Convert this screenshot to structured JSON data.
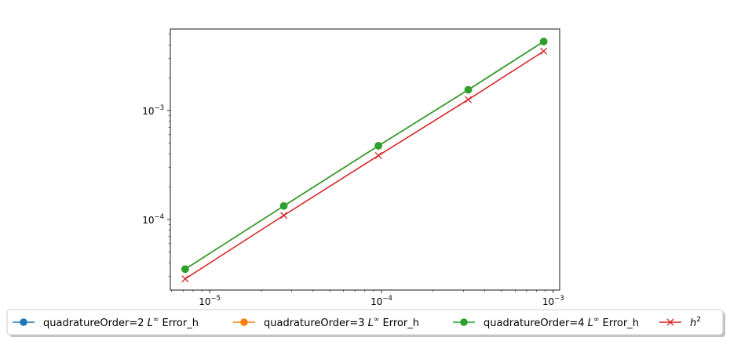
{
  "chart_data": {
    "type": "line",
    "xscale": "log",
    "yscale": "log",
    "xlim": [
      5.9e-06,
      0.00109
    ],
    "ylim": [
      2.25e-05,
      0.0056
    ],
    "xticks": [
      {
        "value": 1e-05,
        "base": "10",
        "exp": "−5"
      },
      {
        "value": 0.0001,
        "base": "10",
        "exp": "−4"
      },
      {
        "value": 0.001,
        "base": "10",
        "exp": "−3"
      }
    ],
    "yticks": [
      {
        "value": 0.0001,
        "base": "10",
        "exp": "−4"
      },
      {
        "value": 0.001,
        "base": "10",
        "exp": "−3"
      }
    ],
    "grid": false,
    "legend_position": "bottom, outside",
    "series": [
      {
        "name": "quadratureOrder=2",
        "name_math": "L∞",
        "name_suffix": " Error_h",
        "color": "#1f77b4",
        "marker": "circle",
        "x": [
          7.2e-06,
          2.7e-05,
          9.6e-05,
          0.00032,
          0.00088
        ],
        "y": [
          3.5e-05,
          0.000133,
          0.000475,
          0.00155,
          0.0043
        ]
      },
      {
        "name": "quadratureOrder=3",
        "name_math": "L∞",
        "name_suffix": " Error_h",
        "color": "#ff7f0e",
        "marker": "circle",
        "x": [
          7.2e-06,
          2.7e-05,
          9.6e-05,
          0.00032,
          0.00088
        ],
        "y": [
          3.5e-05,
          0.000133,
          0.000475,
          0.00155,
          0.0043
        ]
      },
      {
        "name": "quadratureOrder=4",
        "name_math": "L∞",
        "name_suffix": " Error_h",
        "color": "#2ca02c",
        "marker": "circle",
        "x": [
          7.2e-06,
          2.7e-05,
          9.6e-05,
          0.00032,
          0.00088
        ],
        "y": [
          3.5e-05,
          0.000133,
          0.000475,
          0.00155,
          0.0043
        ]
      },
      {
        "name": "h",
        "name_math": "2",
        "name_suffix": "",
        "color": "#d62728",
        "marker": "x",
        "x": [
          7.2e-06,
          2.7e-05,
          9.6e-05,
          0.00032,
          0.00088
        ],
        "y": [
          2.85e-05,
          0.000109,
          0.000386,
          0.00126,
          0.0035
        ]
      }
    ]
  }
}
